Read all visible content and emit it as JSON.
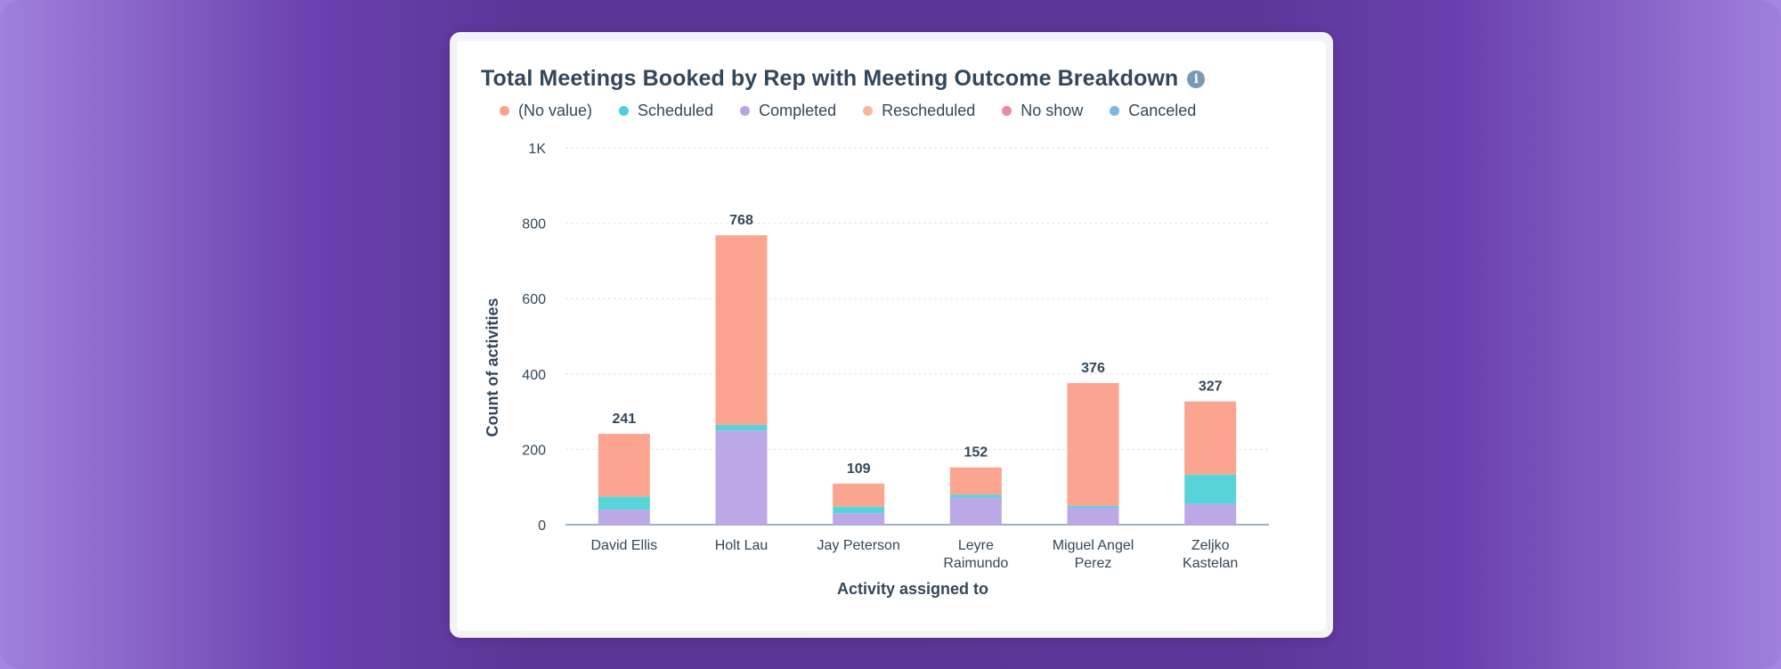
{
  "chart_data": {
    "type": "bar",
    "stacked": true,
    "title": "Total Meetings Booked by Rep with Meeting Outcome Breakdown",
    "xlabel": "Activity assigned to",
    "ylabel": "Count of activities",
    "ylim": [
      0,
      1000
    ],
    "yticks": [
      0,
      200,
      400,
      600,
      800,
      1000
    ],
    "ytick_labels": [
      "0",
      "200",
      "400",
      "600",
      "800",
      "1K"
    ],
    "categories": [
      [
        "David Ellis"
      ],
      [
        "Holt Lau"
      ],
      [
        "Jay Peterson"
      ],
      [
        "Leyre",
        "Raimundo"
      ],
      [
        "Miguel Angel",
        "Perez"
      ],
      [
        "Zeljko",
        "Kastelan"
      ]
    ],
    "totals": [
      241,
      768,
      109,
      152,
      376,
      327
    ],
    "series": [
      {
        "name": "Completed",
        "color": "#bca8e6",
        "values": [
          40,
          250,
          30,
          72,
          45,
          55
        ]
      },
      {
        "name": "Scheduled",
        "color": "#58d4d8",
        "values": [
          35,
          15,
          18,
          8,
          5,
          78
        ]
      },
      {
        "name": "(No value)",
        "color": "#fba591",
        "values": [
          166,
          503,
          61,
          72,
          326,
          194
        ]
      }
    ],
    "legend": [
      {
        "label": "(No value)",
        "color": "#f8a288"
      },
      {
        "label": "Scheduled",
        "color": "#4fcfd8"
      },
      {
        "label": "Completed",
        "color": "#b9a3e3"
      },
      {
        "label": "Rescheduled",
        "color": "#fbb89a"
      },
      {
        "label": "No show",
        "color": "#ea8aa8"
      },
      {
        "label": "Canceled",
        "color": "#7ab8e8"
      }
    ]
  }
}
